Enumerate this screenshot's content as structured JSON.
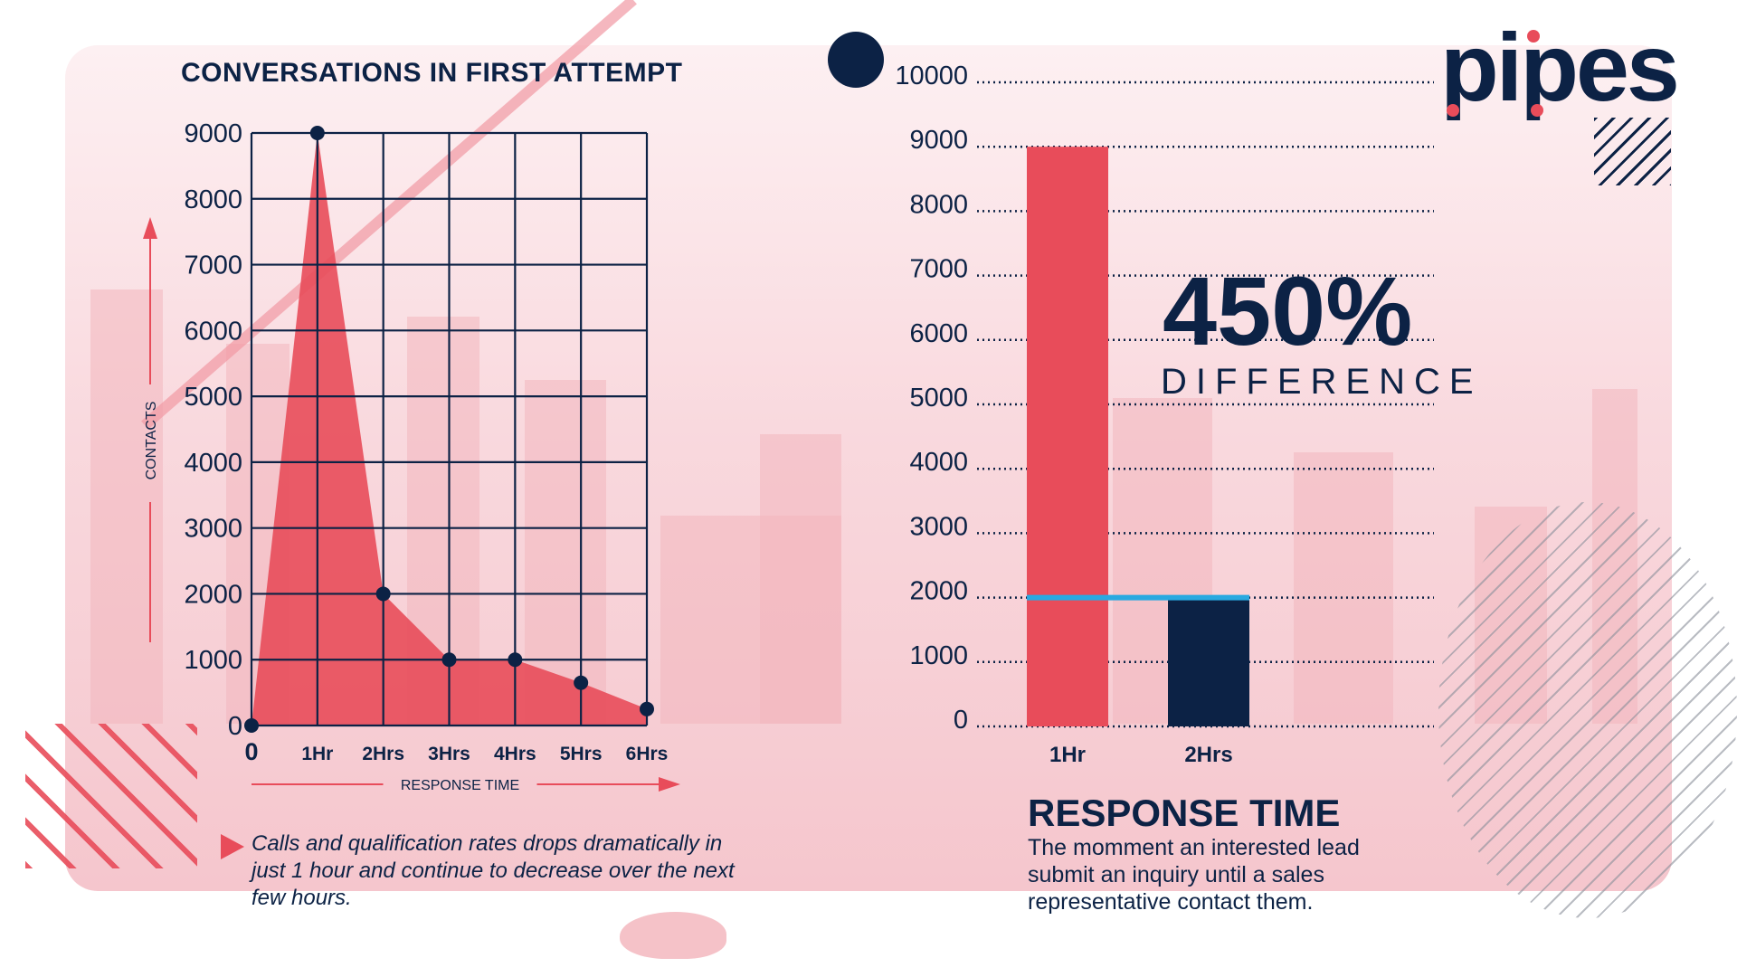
{
  "brand": {
    "logo_text": "pipes",
    "navy": "#0c2245",
    "red": "#e84c5a",
    "pink": "#f5c6cd",
    "blue_line": "#29a9e0"
  },
  "left_panel": {
    "caption": "Calls and qualification rates drops dramatically in just 1 hour and continue to decrease over the next few hours."
  },
  "right_panel": {
    "big_percent": "450%",
    "difference_label": "DIFFERENCE",
    "title": "RESPONSE TIME",
    "description": "The momment an interested lead submit an inquiry until a sales representative contact them."
  },
  "chart_data": [
    {
      "type": "area",
      "title": "CONVERSATIONS IN FIRST ATTEMPT",
      "xlabel": "RESPONSE TIME",
      "ylabel": "CONTACTS",
      "categories": [
        "0",
        "1Hr",
        "2Hrs",
        "3Hrs",
        "4Hrs",
        "5Hrs",
        "6Hrs"
      ],
      "values": [
        0,
        9000,
        2000,
        1000,
        1000,
        650,
        250
      ],
      "ylim": [
        0,
        9000
      ],
      "yticks": [
        "0",
        "1000",
        "2000",
        "3000",
        "4000",
        "5000",
        "6000",
        "7000",
        "8000",
        "9000"
      ],
      "grid": true
    },
    {
      "type": "bar",
      "title": "RESPONSE TIME",
      "categories": [
        "1Hr",
        "2Hrs"
      ],
      "values": [
        9000,
        2000
      ],
      "ylim": [
        0,
        10000
      ],
      "yticks": [
        "0",
        "1000",
        "2000",
        "3000",
        "4000",
        "5000",
        "6000",
        "7000",
        "8000",
        "9000",
        "10000"
      ],
      "grid": true
    }
  ]
}
